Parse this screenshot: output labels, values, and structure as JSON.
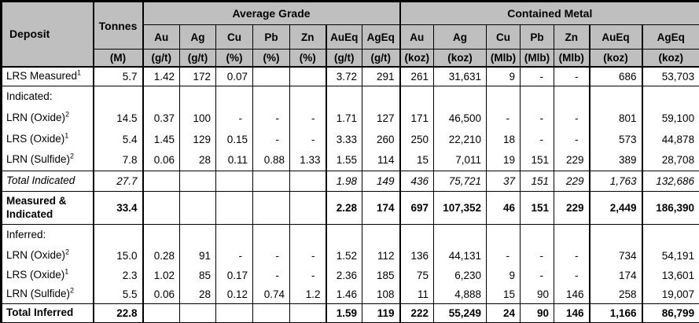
{
  "chart_data": {
    "type": "table",
    "header": {
      "deposit_label": "Deposit",
      "tonnes_label": "Tonnes",
      "tonnes_unit": "(M)",
      "group_average_grade": "Average Grade",
      "group_contained_metal": "Contained Metal",
      "grade_columns": [
        {
          "metal": "Au",
          "unit": "(g/t)"
        },
        {
          "metal": "Ag",
          "unit": "(g/t)"
        },
        {
          "metal": "Cu",
          "unit": "(%)"
        },
        {
          "metal": "Pb",
          "unit": "(%)"
        },
        {
          "metal": "Zn",
          "unit": "(%)"
        },
        {
          "metal": "AuEq",
          "unit": "(g/t)"
        },
        {
          "metal": "AgEq",
          "unit": "(g/t)"
        }
      ],
      "metal_columns": [
        {
          "metal": "Au",
          "unit": "(koz)"
        },
        {
          "metal": "Ag",
          "unit": "(koz)"
        },
        {
          "metal": "Cu",
          "unit": "(Mlb)"
        },
        {
          "metal": "Pb",
          "unit": "(Mlb)"
        },
        {
          "metal": "Zn",
          "unit": "(Mlb)"
        },
        {
          "metal": "AuEq",
          "unit": "(koz)"
        },
        {
          "metal": "AgEq",
          "unit": "(koz)"
        }
      ]
    },
    "rows": [
      {
        "label": "LRS Measured",
        "sup": "1",
        "type": "data",
        "rule_below": true,
        "cells": [
          "5.7",
          "1.42",
          "172",
          "0.07",
          "",
          "",
          "3.72",
          "291",
          "261",
          "31,631",
          "9",
          "-",
          "-",
          "686",
          "53,703"
        ]
      },
      {
        "label": "Indicated:",
        "sup": "",
        "type": "section",
        "rule_below": false,
        "cells": [
          "",
          "",
          "",
          "",
          "",
          "",
          "",
          "",
          "",
          "",
          "",
          "",
          "",
          "",
          ""
        ]
      },
      {
        "label": "LRN (Oxide)",
        "sup": "2",
        "type": "data",
        "rule_below": false,
        "cells": [
          "14.5",
          "0.37",
          "100",
          "-",
          "-",
          "-",
          "1.71",
          "127",
          "171",
          "46,500",
          "-",
          "-",
          "-",
          "801",
          "59,100"
        ]
      },
      {
        "label": "LRS (Oxide)",
        "sup": "1",
        "type": "data",
        "rule_below": false,
        "cells": [
          "5.4",
          "1.45",
          "129",
          "0.15",
          "-",
          "-",
          "3.33",
          "260",
          "250",
          "22,210",
          "18",
          "-",
          "-",
          "573",
          "44,878"
        ]
      },
      {
        "label": "LRN (Sulfide)",
        "sup": "2",
        "type": "data",
        "rule_below": true,
        "cells": [
          "7.8",
          "0.06",
          "28",
          "0.11",
          "0.88",
          "1.33",
          "1.55",
          "114",
          "15",
          "7,011",
          "19",
          "151",
          "229",
          "389",
          "28,708"
        ]
      },
      {
        "label": "Total Indicated",
        "sup": "",
        "type": "subtotal",
        "rule_below": true,
        "cells": [
          "27.7",
          "",
          "",
          "",
          "",
          "",
          "1.98",
          "149",
          "436",
          "75,721",
          "37",
          "151",
          "229",
          "1,763",
          "132,686"
        ]
      },
      {
        "label": "Measured & Indicated",
        "sup": "",
        "type": "total",
        "rule_below": true,
        "cells": [
          "33.4",
          "",
          "",
          "",
          "",
          "",
          "2.28",
          "174",
          "697",
          "107,352",
          "46",
          "151",
          "229",
          "2,449",
          "186,390"
        ]
      },
      {
        "label": "Inferred:",
        "sup": "",
        "type": "section",
        "rule_below": false,
        "cells": [
          "",
          "",
          "",
          "",
          "",
          "",
          "",
          "",
          "",
          "",
          "",
          "",
          "",
          "",
          ""
        ]
      },
      {
        "label": "LRN (Oxide)",
        "sup": "2",
        "type": "data",
        "rule_below": false,
        "cells": [
          "15.0",
          "0.28",
          "91",
          "-",
          "-",
          "-",
          "1.52",
          "112",
          "136",
          "44,131",
          "-",
          "-",
          "-",
          "734",
          "54,191"
        ]
      },
      {
        "label": "LRS (Oxide)",
        "sup": "1",
        "type": "data",
        "rule_below": false,
        "cells": [
          "2.3",
          "1.02",
          "85",
          "0.17",
          "-",
          "-",
          "2.36",
          "185",
          "75",
          "6,230",
          "9",
          "-",
          "-",
          "174",
          "13,601"
        ]
      },
      {
        "label": "LRN (Sulfide)",
        "sup": "2",
        "type": "data",
        "rule_below": true,
        "cells": [
          "5.5",
          "0.06",
          "28",
          "0.12",
          "0.74",
          "1.2",
          "1.46",
          "108",
          "11",
          "4,888",
          "15",
          "90",
          "146",
          "258",
          "19,007"
        ]
      },
      {
        "label": "Total Inferred",
        "sup": "",
        "type": "total",
        "rule_below": false,
        "cells": [
          "22.8",
          "",
          "",
          "",
          "",
          "",
          "1.59",
          "119",
          "222",
          "55,249",
          "24",
          "90",
          "146",
          "1,166",
          "86,799"
        ]
      }
    ]
  },
  "styles": {
    "header_bg": "#bfbfbf",
    "border_color": "#000000",
    "text_color": "#000000"
  }
}
